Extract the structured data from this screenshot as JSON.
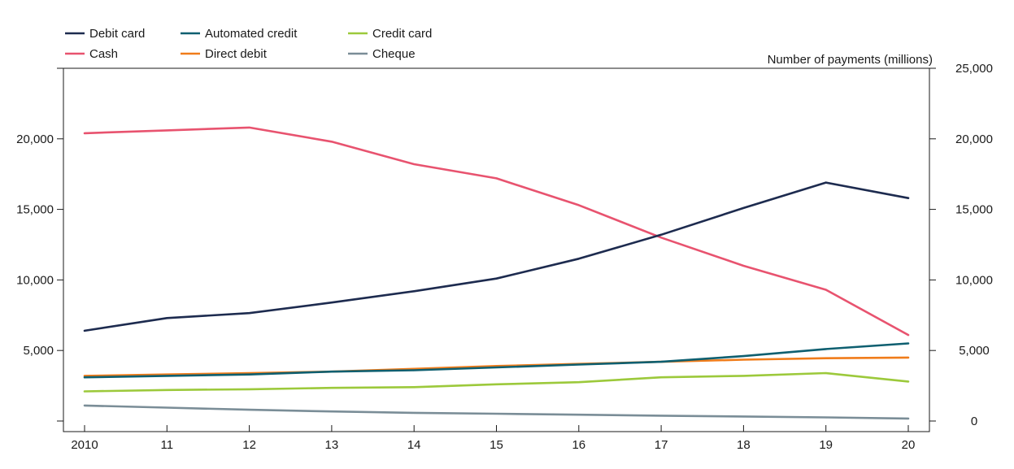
{
  "chart_data": {
    "type": "line",
    "ylabel": "Number of payments (millions)",
    "x_tick_labels": [
      "2010",
      "11",
      "12",
      "13",
      "14",
      "15",
      "16",
      "17",
      "18",
      "19",
      "20"
    ],
    "x": [
      2010,
      2011,
      2012,
      2013,
      2014,
      2015,
      2016,
      2017,
      2018,
      2019,
      2020
    ],
    "y_ticks_left": [
      "",
      "5,000",
      "10,000",
      "15,000",
      "20,000"
    ],
    "y_ticks_right": [
      "0",
      "5,000",
      "10,000",
      "15,000",
      "20,000",
      "25,000"
    ],
    "y_tick_values": [
      0,
      5000,
      10000,
      15000,
      20000,
      25000
    ],
    "ylim": [
      -750,
      25000
    ],
    "grid": false,
    "legend_position": "top-left",
    "series": [
      {
        "name": "Debit card",
        "color": "#1d2b4f",
        "values": [
          6400,
          7300,
          7650,
          8400,
          9200,
          10100,
          11500,
          13200,
          15100,
          16900,
          15800
        ]
      },
      {
        "name": "Cash",
        "color": "#e8536f",
        "values": [
          20400,
          20600,
          20800,
          19800,
          18200,
          17200,
          15300,
          13000,
          11000,
          9300,
          6100
        ]
      },
      {
        "name": "Automated credit",
        "color": "#0e5f70",
        "values": [
          3100,
          3200,
          3300,
          3500,
          3600,
          3800,
          4000,
          4200,
          4600,
          5100,
          5500
        ]
      },
      {
        "name": "Direct debit",
        "color": "#f07c1a",
        "values": [
          3200,
          3300,
          3400,
          3500,
          3700,
          3900,
          4050,
          4200,
          4350,
          4450,
          4500
        ]
      },
      {
        "name": "Credit card",
        "color": "#9cc93b",
        "values": [
          2100,
          2200,
          2250,
          2350,
          2400,
          2600,
          2750,
          3100,
          3200,
          3400,
          2800
        ]
      },
      {
        "name": "Cheque",
        "color": "#7a8d97",
        "values": [
          1100,
          950,
          800,
          680,
          580,
          520,
          450,
          380,
          320,
          260,
          180
        ]
      }
    ]
  }
}
